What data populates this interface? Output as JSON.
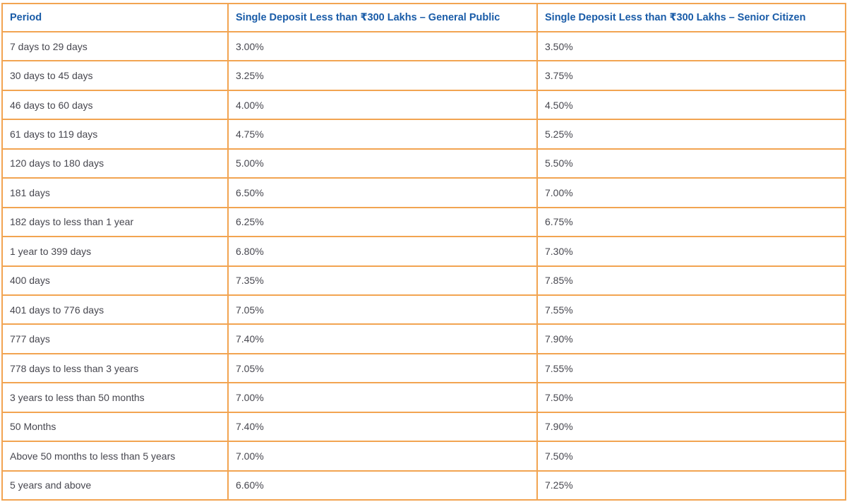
{
  "colors": {
    "border": "#F2A451",
    "header_text": "#1A5CA8",
    "body_text": "#47474F",
    "background": "#FFFFFF"
  },
  "table": {
    "name": "fixed-deposit-interest-rates",
    "columns": [
      {
        "label": "Period"
      },
      {
        "label": "Single Deposit Less than ₹300 Lakhs – General Public"
      },
      {
        "label": "Single Deposit Less than ₹300 Lakhs – Senior Citizen"
      }
    ],
    "rows": [
      {
        "period": "7 days to 29 days",
        "general_public": "3.00%",
        "senior_citizen": "3.50%"
      },
      {
        "period": "30 days to 45 days",
        "general_public": "3.25%",
        "senior_citizen": "3.75%"
      },
      {
        "period": "46 days to 60 days",
        "general_public": "4.00%",
        "senior_citizen": "4.50%"
      },
      {
        "period": "61 days to 119 days",
        "general_public": "4.75%",
        "senior_citizen": "5.25%"
      },
      {
        "period": "120 days to 180 days",
        "general_public": "5.00%",
        "senior_citizen": "5.50%"
      },
      {
        "period": "181 days",
        "general_public": "6.50%",
        "senior_citizen": "7.00%"
      },
      {
        "period": "182 days to less than 1 year",
        "general_public": "6.25%",
        "senior_citizen": "6.75%"
      },
      {
        "period": "1 year to 399 days",
        "general_public": "6.80%",
        "senior_citizen": "7.30%"
      },
      {
        "period": "400 days",
        "general_public": "7.35%",
        "senior_citizen": "7.85%"
      },
      {
        "period": "401 days to 776 days",
        "general_public": "7.05%",
        "senior_citizen": "7.55%"
      },
      {
        "period": "777 days",
        "general_public": "7.40%",
        "senior_citizen": "7.90%"
      },
      {
        "period": "778 days to less than 3 years",
        "general_public": "7.05%",
        "senior_citizen": "7.55%"
      },
      {
        "period": "3 years to less than 50 months",
        "general_public": "7.00%",
        "senior_citizen": "7.50%"
      },
      {
        "period": "50 Months",
        "general_public": "7.40%",
        "senior_citizen": "7.90%"
      },
      {
        "period": "Above 50 months to less than 5 years",
        "general_public": "7.00%",
        "senior_citizen": "7.50%"
      },
      {
        "period": "5 years and above",
        "general_public": "6.60%",
        "senior_citizen": "7.25%"
      }
    ]
  }
}
